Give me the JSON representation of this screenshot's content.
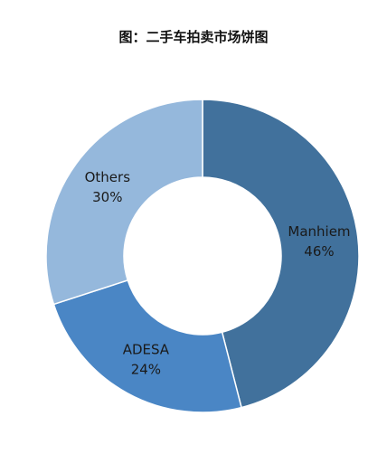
{
  "chart_data": {
    "type": "pie",
    "title": "图：二手车拍卖市场饼图",
    "categories": [
      "Manhiem",
      "ADESA",
      "Others"
    ],
    "values": [
      46,
      24,
      30
    ],
    "value_labels": [
      "46%",
      "24%",
      "30%"
    ],
    "colors": [
      "#41719c",
      "#4a86c5",
      "#95b8dc"
    ]
  }
}
